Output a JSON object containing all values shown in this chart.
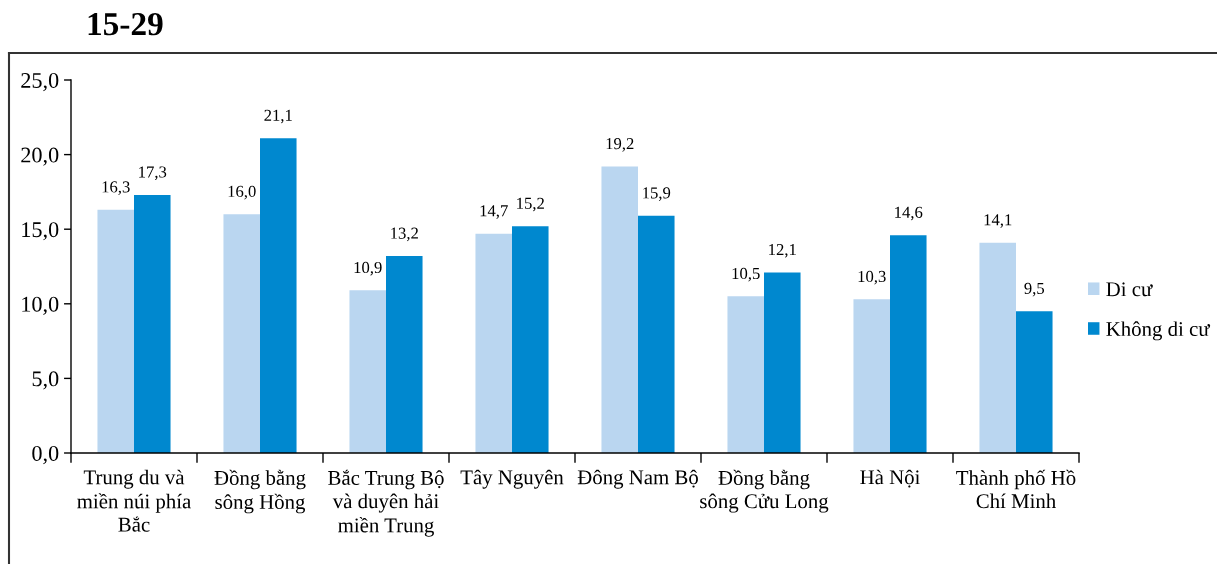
{
  "chart_data": {
    "type": "bar",
    "title": "15-29",
    "categories": [
      "Trung du và\nmiền núi phía\nBắc",
      "Đồng bằng\nsông Hồng",
      "Bắc Trung Bộ\nvà duyên hải\nmiền Trung",
      "Tây Nguyên",
      "Đông Nam Bộ",
      "Đồng bằng\nsông Cửu Long",
      "Hà Nội",
      "Thành phố Hồ\nChí Minh"
    ],
    "series": [
      {
        "name": "Di cư",
        "color": "#bad6f0",
        "values": [
          16.3,
          16.0,
          10.9,
          14.7,
          19.2,
          10.5,
          10.3,
          14.1
        ],
        "value_labels": [
          "16,3",
          "16,0",
          "10,9",
          "14,7",
          "19,2",
          "10,5",
          "10,3",
          "14,1"
        ]
      },
      {
        "name": "Không di cư",
        "color": "#0088cf",
        "values": [
          17.3,
          21.1,
          13.2,
          15.2,
          15.9,
          12.1,
          14.6,
          9.5
        ],
        "value_labels": [
          "17,3",
          "21,1",
          "13,2",
          "15,2",
          "15,9",
          "12,1",
          "14,6",
          "9,5"
        ]
      }
    ],
    "ylim": [
      0,
      25
    ],
    "yticks": [
      {
        "value": 0,
        "label": "0,0"
      },
      {
        "value": 5,
        "label": "5,0"
      },
      {
        "value": 10,
        "label": "10,0"
      },
      {
        "value": 15,
        "label": "15,0"
      },
      {
        "value": 20,
        "label": "20,0"
      },
      {
        "value": 25,
        "label": "25,0"
      }
    ],
    "grid": false,
    "legend": "right"
  }
}
